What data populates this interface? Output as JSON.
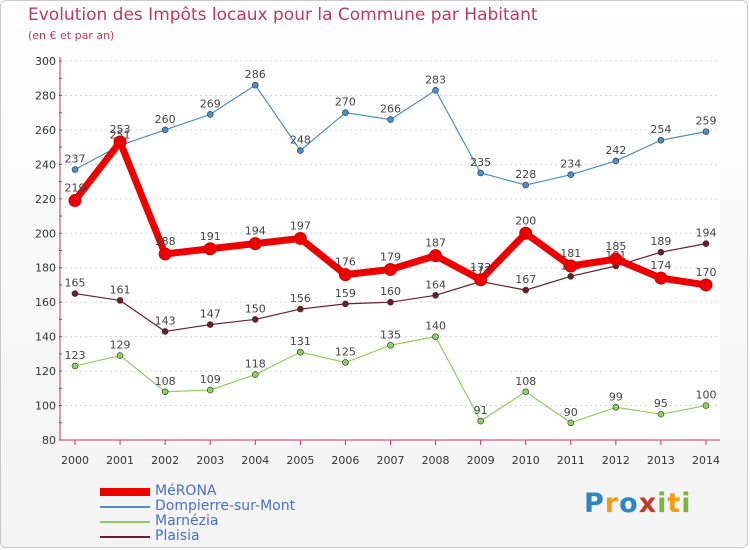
{
  "header": {
    "title": "Evolution des Impôts locaux pour la Commune par Habitant",
    "subtitle": "(en € et par an)"
  },
  "logo": {
    "text": "Proxiti"
  },
  "colors": {
    "axis": "#c0385e",
    "tick_text": "#333333",
    "grid": "#d8d8d8"
  },
  "chart_data": {
    "type": "line",
    "title": "Evolution des Impôts locaux pour la Commune par Habitant",
    "subtitle": "(en € et par an)",
    "xlabel": "",
    "ylabel": "",
    "categories": [
      "2000",
      "2001",
      "2002",
      "2003",
      "2004",
      "2005",
      "2006",
      "2007",
      "2008",
      "2009",
      "2010",
      "2011",
      "2012",
      "2013",
      "2014"
    ],
    "ylim": [
      80,
      300
    ],
    "yticks": [
      80,
      100,
      120,
      140,
      160,
      180,
      200,
      220,
      240,
      260,
      280,
      300
    ],
    "grid": true,
    "legend_position": "bottom-left",
    "series": [
      {
        "name": "Dompierre-sur-Mont",
        "color": "#4a8fca",
        "values": [
          237,
          251,
          260,
          269,
          286,
          248,
          270,
          266,
          283,
          235,
          228,
          234,
          242,
          254,
          259
        ]
      },
      {
        "name": "Marnézia",
        "color": "#8fcf5f",
        "values": [
          123,
          129,
          108,
          109,
          118,
          131,
          125,
          135,
          140,
          91,
          108,
          90,
          99,
          95,
          100
        ]
      },
      {
        "name": "Plaisia",
        "color": "#6b1e2a",
        "values": [
          165,
          161,
          143,
          147,
          150,
          156,
          159,
          160,
          164,
          172,
          167,
          175,
          181,
          189,
          194
        ]
      },
      {
        "name": "MéRONA",
        "color": "#ee0000",
        "values": [
          219,
          253,
          188,
          191,
          194,
          197,
          176,
          179,
          187,
          173,
          200,
          181,
          185,
          174,
          170
        ]
      }
    ]
  }
}
